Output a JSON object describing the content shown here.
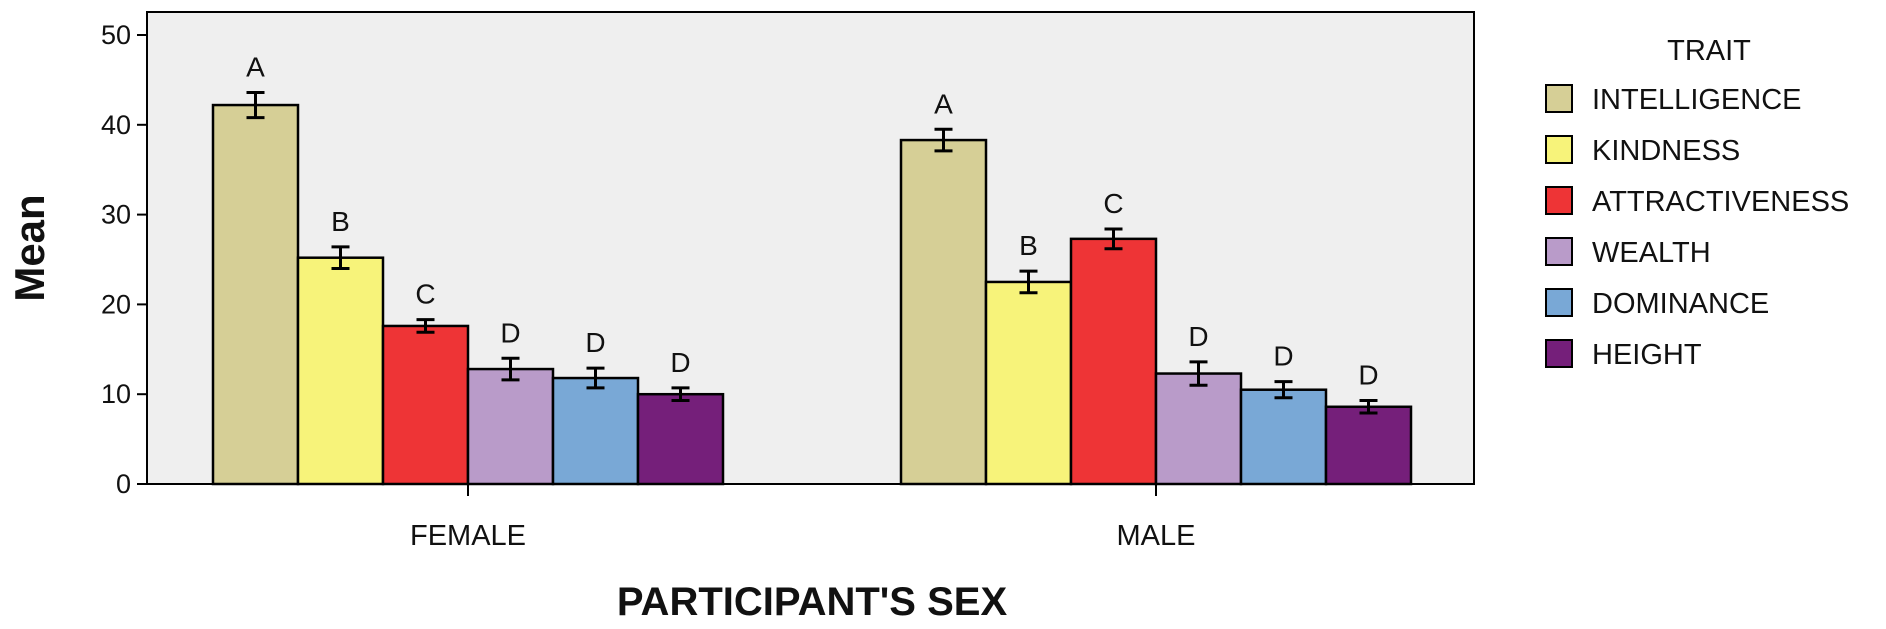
{
  "chart_data": {
    "type": "bar",
    "title": "",
    "xlabel": "PARTICIPANT'S SEX",
    "ylabel": "Mean",
    "ylim": [
      0,
      50
    ],
    "yticks": [
      0,
      10,
      20,
      30,
      40,
      50
    ],
    "categories": [
      "FEMALE",
      "MALE"
    ],
    "legend_title": "TRAIT",
    "legend_position": "right",
    "grid": false,
    "error_bars": true,
    "series": [
      {
        "name": "INTELLIGENCE",
        "color": "#d6cf96",
        "values": [
          42.2,
          38.3
        ],
        "errors": [
          1.4,
          1.2
        ],
        "labels": [
          "A",
          "A"
        ]
      },
      {
        "name": "KINDNESS",
        "color": "#f7f37a",
        "values": [
          25.2,
          22.5
        ],
        "errors": [
          1.2,
          1.2
        ],
        "labels": [
          "B",
          "B"
        ]
      },
      {
        "name": "ATTRACTIVENESS",
        "color": "#ee3436",
        "values": [
          17.6,
          27.3
        ],
        "errors": [
          0.7,
          1.1
        ],
        "labels": [
          "C",
          "C"
        ]
      },
      {
        "name": "WEALTH",
        "color": "#b99bc9",
        "values": [
          12.8,
          12.3
        ],
        "errors": [
          1.2,
          1.3
        ],
        "labels": [
          "D",
          "D"
        ]
      },
      {
        "name": "DOMINANCE",
        "color": "#79a8d6",
        "values": [
          11.8,
          10.5
        ],
        "errors": [
          1.1,
          0.9
        ],
        "labels": [
          "D",
          "D"
        ]
      },
      {
        "name": "HEIGHT",
        "color": "#751f7a",
        "values": [
          10.0,
          8.6
        ],
        "errors": [
          0.7,
          0.7
        ],
        "labels": [
          "D",
          "D"
        ]
      }
    ],
    "colors": {
      "plot_background": "#efefef",
      "axis": "#000000",
      "text": "#111111"
    }
  }
}
